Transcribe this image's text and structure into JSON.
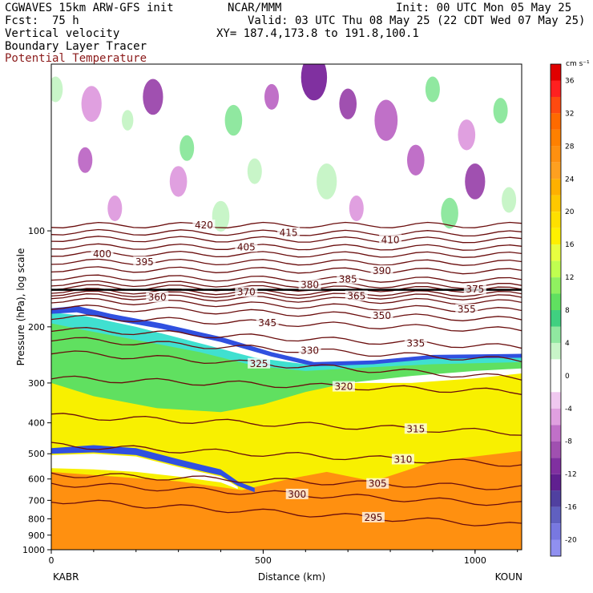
{
  "header": {
    "model": "CGWAVES 15km ARW-GFS init",
    "org": "NCAR/MMM",
    "init": "Init: 00 UTC Mon 05 May 25",
    "fcst": "Fcst:  75 h",
    "valid": "Valid: 03 UTC Thu 08 May 25 (22 CDT Wed 07 May 25)",
    "field1": "Vertical velocity",
    "xy": "XY= 187.4,173.8 to 191.8,100.1",
    "field2": "Boundary Layer Tracer",
    "field3": "Potential Temperature"
  },
  "chart_data": {
    "type": "heatmap",
    "xlabel": "Distance (km)",
    "ylabel": "Pressure (hPa), log scale",
    "x_ticks": [
      "0",
      "500",
      "1000"
    ],
    "x_tick_values": [
      0,
      500,
      1000
    ],
    "xlim": [
      0,
      1110
    ],
    "y_ticks": [
      "100",
      "200",
      "300",
      "400",
      "500",
      "600",
      "700",
      "800",
      "900",
      "1000"
    ],
    "y_tick_values": [
      100,
      200,
      300,
      400,
      500,
      600,
      700,
      800,
      900,
      1000
    ],
    "ylim": [
      1000,
      30
    ],
    "y_scale": "log",
    "endpoints": {
      "left": "KABR",
      "right": "KOUN"
    },
    "colorbar": {
      "unit": "cm s⁻¹",
      "labels": [
        "36",
        "32",
        "28",
        "24",
        "20",
        "16",
        "12",
        "8",
        "4",
        "0",
        "-4",
        "-8",
        "-12",
        "-16",
        "-20"
      ],
      "levels": [
        38,
        36,
        34,
        32,
        30,
        28,
        26,
        24,
        22,
        20,
        18,
        16,
        14,
        12,
        10,
        8,
        6,
        4,
        2,
        0,
        -2,
        -4,
        -6,
        -8,
        -10,
        -12,
        -14,
        -16,
        -18,
        -20,
        -22
      ],
      "colors": [
        "#e00000",
        "#ff2020",
        "#ff4a10",
        "#ff6a00",
        "#ff8000",
        "#ff9010",
        "#ffa020",
        "#ffb000",
        "#ffc800",
        "#ffe000",
        "#fff000",
        "#e8ff40",
        "#c0ff50",
        "#90f060",
        "#60e060",
        "#40d080",
        "#90e8a0",
        "#c8f5c8",
        "#ffffff",
        "#ffffff",
        "#f0c8f0",
        "#e0a0e0",
        "#c070c8",
        "#a050b0",
        "#8030a0",
        "#602090",
        "#5040a0",
        "#6060c0",
        "#7878e0",
        "#9090f0"
      ]
    },
    "isentropes": [
      {
        "theta": "295",
        "p_left": 700,
        "p_right": 840,
        "label_x": 760
      },
      {
        "theta": "300",
        "p_left": 620,
        "p_right": 720,
        "label_x": 580
      },
      {
        "theta": "305",
        "p_left": 580,
        "p_right": 640,
        "label_x": 770
      },
      {
        "theta": "310",
        "p_left": 470,
        "p_right": 540,
        "label_x": 830
      },
      {
        "theta": "315",
        "p_left": 380,
        "p_right": 430,
        "label_x": 860
      },
      {
        "theta": "320",
        "p_left": 290,
        "p_right": 320,
        "label_x": 690
      },
      {
        "theta": "325",
        "p_left": 240,
        "p_right": 290,
        "label_x": 490
      },
      {
        "theta": "330",
        "p_left": 218,
        "p_right": 255,
        "label_x": 610
      },
      {
        "theta": "335",
        "p_left": 203,
        "p_right": 232,
        "label_x": 860
      },
      {
        "theta": "345",
        "p_left": 186,
        "p_right": 205,
        "label_x": 510
      },
      {
        "theta": "350",
        "p_left": 173,
        "p_right": 190,
        "label_x": 780
      },
      {
        "theta": "355",
        "p_left": 165,
        "p_right": 178,
        "label_x": 980
      },
      {
        "theta": "360",
        "p_left": 160,
        "p_right": 168,
        "label_x": 250
      },
      {
        "theta": "365",
        "p_left": 157,
        "p_right": 162,
        "label_x": 720
      },
      {
        "theta": "370",
        "p_left": 154,
        "p_right": 158,
        "label_x": 460
      },
      {
        "theta": "375",
        "p_left": 150,
        "p_right": 153,
        "label_x": 1000
      },
      {
        "theta": "380",
        "p_left": 146,
        "p_right": 149,
        "label_x": 610
      },
      {
        "theta": "385",
        "p_left": 140,
        "p_right": 143,
        "label_x": 700
      },
      {
        "theta": "390",
        "p_left": 132,
        "p_right": 134,
        "label_x": 780
      },
      {
        "theta": "395",
        "p_left": 125,
        "p_right": 126,
        "label_x": 220
      },
      {
        "theta": "400",
        "p_left": 118,
        "p_right": 119,
        "label_x": 120
      },
      {
        "theta": "405",
        "p_left": 112,
        "p_right": 113,
        "label_x": 460
      },
      {
        "theta": "410",
        "p_left": 106,
        "p_right": 107,
        "label_x": 800
      },
      {
        "theta": "415",
        "p_left": 101,
        "p_right": 102,
        "label_x": 560
      },
      {
        "theta": "420",
        "p_left": 96,
        "p_right": 96,
        "label_x": 360
      }
    ]
  }
}
